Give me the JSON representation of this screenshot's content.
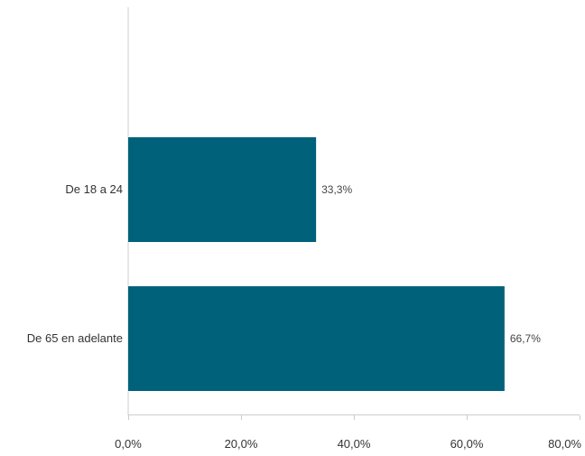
{
  "chart_data": {
    "type": "bar",
    "orientation": "horizontal",
    "categories": [
      "De 18 a 24",
      "De 65 en adelante"
    ],
    "values": [
      33.3,
      66.7
    ],
    "data_labels": [
      "33,3%",
      "66,7%"
    ],
    "xlim": [
      0,
      80
    ],
    "x_ticks": [
      0,
      20,
      40,
      60,
      80
    ],
    "x_tick_labels": [
      "0,0%",
      "20,0%",
      "40,0%",
      "60,0%",
      "80,0%"
    ],
    "grid": false,
    "legend": "none",
    "bar_color": "#00627a"
  }
}
